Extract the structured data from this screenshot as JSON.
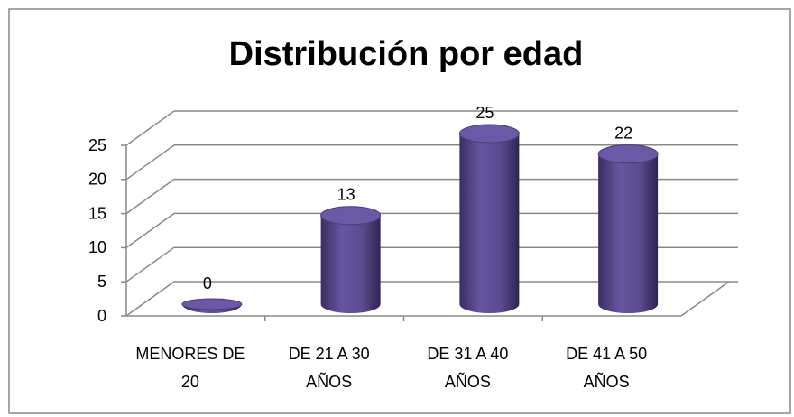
{
  "chart_data": {
    "type": "bar3d",
    "title": "Distribución por edad",
    "categories": [
      "MENORES DE 20",
      "DE 21 A 30 AÑOS",
      "DE 31 A 40 AÑOS",
      "DE 41 A 50 AÑOS"
    ],
    "values": [
      0,
      13,
      25,
      22
    ],
    "color": "#5a4a8e",
    "ylim": [
      0,
      25
    ],
    "yticks": [
      0,
      5,
      10,
      15,
      20,
      25
    ],
    "grid": true
  }
}
